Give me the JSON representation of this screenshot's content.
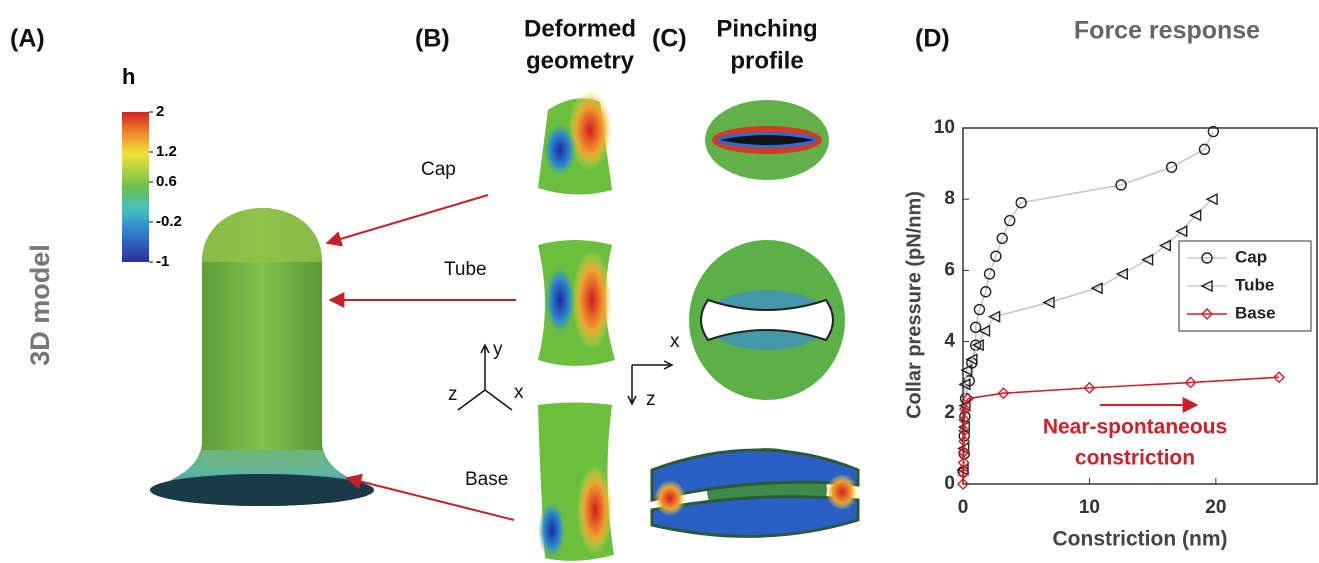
{
  "panel_labels": [
    "(A)",
    "(B)",
    "(C)",
    "(D)"
  ],
  "panel_a": {
    "title": "3D model",
    "colorbar": {
      "label": "h",
      "lim": [
        -1,
        2
      ],
      "ticks": [
        2,
        1.2,
        0.6,
        -0.2,
        -1
      ]
    }
  },
  "regions": [
    "Cap",
    "Tube",
    "Base"
  ],
  "panel_b": {
    "title": [
      "Deformed",
      "geometry"
    ],
    "axes": [
      "y",
      "z",
      "x"
    ]
  },
  "panel_c": {
    "title": [
      "Pinching",
      "profile"
    ],
    "axes": [
      "x",
      "z"
    ]
  },
  "chart_data": {
    "type": "line",
    "title": "Force response",
    "xlabel": "Constriction (nm)",
    "ylabel": "Collar pressure (pN/nm)",
    "xlim": [
      0,
      28
    ],
    "xticks": [
      0,
      10,
      20
    ],
    "ylim": [
      0,
      10
    ],
    "yticks": [
      0,
      2,
      4,
      6,
      8,
      10
    ],
    "legend": "east",
    "annotation": [
      "Near-spontaneous",
      "constriction"
    ],
    "annotation_color": "#d0202a",
    "series": [
      {
        "name": "Cap",
        "marker": "circle",
        "color": "#222222",
        "line_color": "#c8c8c8",
        "x": [
          0,
          0.1,
          0.1,
          0.15,
          0.2,
          0.5,
          0.7,
          1.0,
          1.0,
          1.3,
          1.8,
          2.1,
          2.6,
          3.1,
          3.7,
          4.6,
          12.5,
          16.5,
          19.1,
          19.8
        ],
        "values": [
          0.35,
          0.85,
          1.35,
          1.9,
          2.4,
          2.9,
          3.4,
          3.9,
          4.4,
          4.9,
          5.4,
          5.9,
          6.4,
          6.9,
          7.4,
          7.9,
          8.4,
          8.9,
          9.4,
          9.9
        ]
      },
      {
        "name": "Tube",
        "marker": "triangle-left",
        "color": "#222222",
        "line_color": "#c8c8c8",
        "x": [
          0,
          0.05,
          0.1,
          0.15,
          0.15,
          0.3,
          0.7,
          1.2,
          1.7,
          2.5,
          6.8,
          10.6,
          12.6,
          14.6,
          16.0,
          17.3,
          18.4,
          19.7
        ],
        "values": [
          0.4,
          1.0,
          1.6,
          2.2,
          2.8,
          3.2,
          3.5,
          3.9,
          4.3,
          4.7,
          5.1,
          5.5,
          5.9,
          6.3,
          6.7,
          7.1,
          7.55,
          8.0
        ]
      },
      {
        "name": "Base",
        "marker": "diamond",
        "color": "#d0202a",
        "line_color": "#d0202a",
        "x": [
          0,
          0.05,
          0.05,
          0.05,
          0.1,
          0.1,
          0.1,
          0.15,
          0.4,
          3.2,
          10,
          18,
          25
        ],
        "values": [
          0,
          0.3,
          0.6,
          0.9,
          1.2,
          1.5,
          1.8,
          2.1,
          2.4,
          2.55,
          2.7,
          2.85,
          3.0
        ]
      }
    ]
  }
}
